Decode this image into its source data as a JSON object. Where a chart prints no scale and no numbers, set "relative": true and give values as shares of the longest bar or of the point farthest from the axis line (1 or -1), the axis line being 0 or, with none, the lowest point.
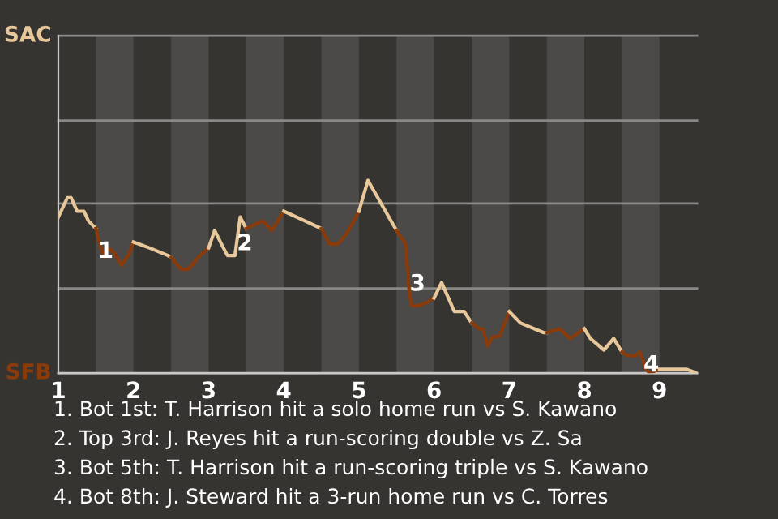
{
  "chart_data": {
    "type": "line",
    "relative": true,
    "line_style": "solid",
    "marker": "none",
    "legend": false,
    "ref_lines": [
      {
        "axis": "y",
        "value": 0,
        "label": "SFB",
        "color": "#c8c8c8"
      },
      {
        "axis": "y",
        "value": 0.44,
        "label": null,
        "color": "#8a8886"
      },
      {
        "axis": "y",
        "value": 0.88,
        "label": null,
        "color": "#8a8886"
      },
      {
        "axis": "y",
        "value": 1.31,
        "label": null,
        "color": "#8a8886"
      },
      {
        "axis": "y",
        "value": 1.75,
        "label": "SAC",
        "color": "#8a8886"
      }
    ],
    "xlim": [
      1,
      9.5
    ],
    "xticks": [
      1,
      2,
      3,
      4,
      5,
      6,
      7,
      8,
      9
    ],
    "bands": [
      {
        "axis": "x",
        "from": 1.5,
        "to": 2,
        "color": "#4b4a48"
      },
      {
        "axis": "x",
        "from": 2.5,
        "to": 3,
        "color": "#4b4a48"
      },
      {
        "axis": "x",
        "from": 3.5,
        "to": 4,
        "color": "#4b4a48"
      },
      {
        "axis": "x",
        "from": 4.5,
        "to": 5,
        "color": "#4b4a48"
      },
      {
        "axis": "x",
        "from": 5.5,
        "to": 6,
        "color": "#4b4a48"
      },
      {
        "axis": "x",
        "from": 6.5,
        "to": 7,
        "color": "#4b4a48"
      },
      {
        "axis": "x",
        "from": 7.5,
        "to": 8,
        "color": "#4b4a48"
      },
      {
        "axis": "x",
        "from": 8.5,
        "to": 9,
        "color": "#4b4a48"
      }
    ],
    "series": [
      {
        "color": "#e8c89a",
        "x": [
          1,
          1.12,
          1.17,
          1.25,
          1.34,
          1.4,
          1.5
        ],
        "values": [
          0.81,
          0.91,
          0.91,
          0.84,
          0.84,
          0.79,
          0.75
        ]
      },
      {
        "color": "#8b3a0a",
        "x": [
          1.5,
          1.55,
          1.61,
          1.65,
          1.73,
          1.84,
          1.93,
          2
        ],
        "values": [
          0.75,
          0.67,
          0.6,
          0.65,
          0.63,
          0.56,
          0.61,
          0.68
        ]
      },
      {
        "color": "#e8c89a",
        "x": [
          2,
          2.21,
          2.46,
          2.5
        ],
        "values": [
          0.68,
          0.65,
          0.61,
          0.6
        ]
      },
      {
        "color": "#8b3a0a",
        "x": [
          2.5,
          2.63,
          2.73,
          2.86,
          3
        ],
        "values": [
          0.6,
          0.54,
          0.54,
          0.6,
          0.65
        ]
      },
      {
        "color": "#e8c89a",
        "x": [
          3,
          3.08,
          3.17,
          3.25,
          3.35,
          3.42,
          3.5
        ],
        "values": [
          0.65,
          0.74,
          0.67,
          0.61,
          0.61,
          0.81,
          0.75
        ]
      },
      {
        "color": "#8b3a0a",
        "x": [
          3.5,
          3.72,
          3.84,
          4
        ],
        "values": [
          0.75,
          0.79,
          0.74,
          0.84
        ]
      },
      {
        "color": "#e8c89a",
        "x": [
          4,
          4.28,
          4.5
        ],
        "values": [
          0.84,
          0.79,
          0.75
        ]
      },
      {
        "color": "#8b3a0a",
        "x": [
          4.5,
          4.61,
          4.72,
          4.83,
          5
        ],
        "values": [
          0.75,
          0.67,
          0.67,
          0.72,
          0.84
        ]
      },
      {
        "color": "#e8c89a",
        "x": [
          5,
          5.12,
          5.5
        ],
        "values": [
          0.84,
          1,
          0.74
        ]
      },
      {
        "color": "#8b3a0a",
        "x": [
          5.5,
          5.62,
          5.67,
          5.7,
          5.8,
          5.92,
          6
        ],
        "values": [
          0.74,
          0.67,
          0.42,
          0.35,
          0.35,
          0.37,
          0.39
        ]
      },
      {
        "color": "#e8c89a",
        "x": [
          6,
          6.1,
          6.27,
          6.4,
          6.5
        ],
        "values": [
          0.39,
          0.47,
          0.32,
          0.32,
          0.26
        ]
      },
      {
        "color": "#8b3a0a",
        "x": [
          6.5,
          6.6,
          6.65,
          6.71,
          6.78,
          6.87,
          7
        ],
        "values": [
          0.26,
          0.23,
          0.23,
          0.14,
          0.19,
          0.19,
          0.32
        ]
      },
      {
        "color": "#e8c89a",
        "x": [
          7,
          7.15,
          7.46,
          7.5
        ],
        "values": [
          0.32,
          0.26,
          0.21,
          0.21
        ]
      },
      {
        "color": "#8b3a0a",
        "x": [
          7.5,
          7.67,
          7.81,
          8
        ],
        "values": [
          0.21,
          0.23,
          0.18,
          0.23
        ]
      },
      {
        "color": "#e8c89a",
        "x": [
          8,
          8.08,
          8.26,
          8.39,
          8.5
        ],
        "values": [
          0.23,
          0.18,
          0.12,
          0.18,
          0.11
        ]
      },
      {
        "color": "#8b3a0a",
        "x": [
          8.5,
          8.58,
          8.68,
          8.74,
          8.82,
          8.87,
          9
        ],
        "values": [
          0.11,
          0.09,
          0.09,
          0.11,
          0.02,
          0,
          0.02
        ]
      },
      {
        "color": "#e8c89a",
        "x": [
          9,
          9.17,
          9.36,
          9.5
        ],
        "values": [
          0.02,
          0.02,
          0.02,
          0
        ]
      }
    ],
    "annotations": [
      {
        "text": "1",
        "x": 1.63,
        "y": 0.63
      },
      {
        "text": "2",
        "x": 3.48,
        "y": 0.67
      },
      {
        "text": "3",
        "x": 5.78,
        "y": 0.46
      },
      {
        "text": "4",
        "x": 8.89,
        "y": 0.04
      },
      "1. Bot 1st: T. Harrison hit a solo home run vs S. Kawano",
      "2. Top 3rd: J. Reyes hit a run-scoring double vs Z. Sa",
      "3. Bot 5th: T. Harrison hit a run-scoring triple vs S. Kawano",
      "4. Bot 8th: J. Steward hit a 3-run home run vs C. Torres"
    ]
  }
}
